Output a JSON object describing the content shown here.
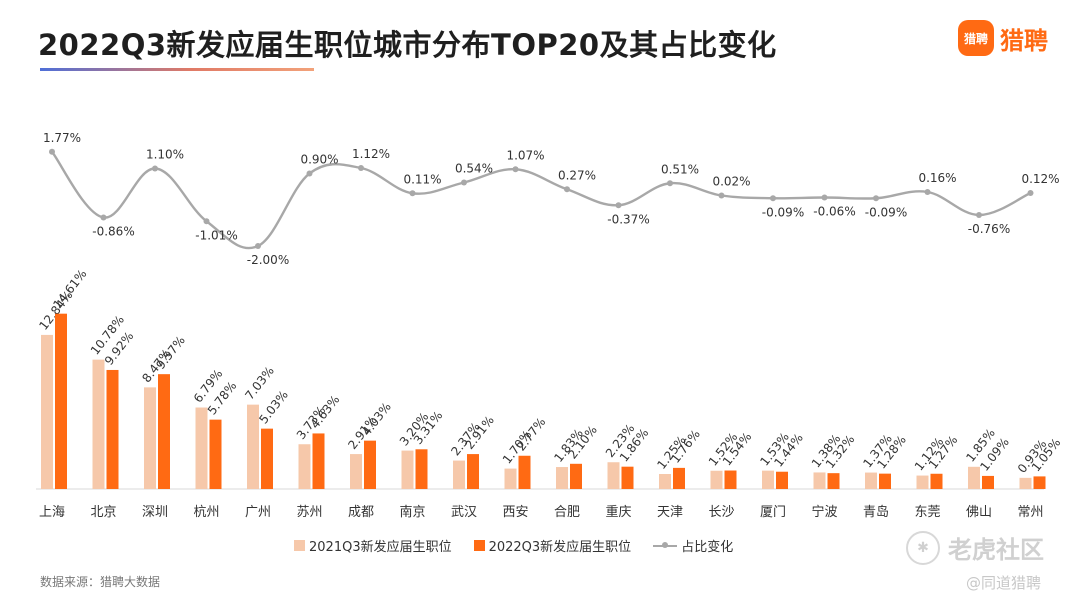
{
  "header": {
    "title": "2022Q3新发应届生职位城市分布TOP20及其占比变化"
  },
  "logo": {
    "mark": "猎聘",
    "text": "猎聘"
  },
  "chart_data": {
    "type": "bar",
    "title": "2022Q3新发应届生职位城市分布TOP20及其占比变化",
    "categories": [
      "上海",
      "北京",
      "深圳",
      "杭州",
      "广州",
      "苏州",
      "成都",
      "南京",
      "武汉",
      "西安",
      "合肥",
      "重庆",
      "天津",
      "长沙",
      "厦门",
      "宁波",
      "青岛",
      "东莞",
      "佛山",
      "常州"
    ],
    "series": [
      {
        "name": "2021Q3新发应届生职位",
        "color": "#f6c8aa",
        "values": [
          12.84,
          10.78,
          8.47,
          6.79,
          7.03,
          3.73,
          2.91,
          3.2,
          2.37,
          1.7,
          1.83,
          2.23,
          1.25,
          1.52,
          1.53,
          1.38,
          1.37,
          1.12,
          1.85,
          0.93
        ],
        "labels": [
          "12.84%",
          "10.78%",
          "8.47%",
          "6.79%",
          "7.03%",
          "3.73%",
          "2.91%",
          "3.20%",
          "2.37%",
          "1.70%",
          "1.83%",
          "2.23%",
          "1.25%",
          "1.52%",
          "1.53%",
          "1.38%",
          "1.37%",
          "1.12%",
          "1.85%",
          "0.93%"
        ]
      },
      {
        "name": "2022Q3新发应届生职位",
        "color": "#ff6a13",
        "values": [
          14.61,
          9.92,
          9.57,
          5.78,
          5.03,
          4.63,
          4.03,
          3.31,
          2.91,
          2.77,
          2.1,
          1.86,
          1.76,
          1.54,
          1.44,
          1.32,
          1.28,
          1.27,
          1.09,
          1.05
        ],
        "labels": [
          "14.61%",
          "9.92%",
          "9.57%",
          "5.78%",
          "5.03%",
          "4.63%",
          "4.03%",
          "3.31%",
          "2.91%",
          "2.77%",
          "2.10%",
          "1.86%",
          "1.76%",
          "1.54%",
          "1.44%",
          "1.32%",
          "1.28%",
          "1.27%",
          "1.09%",
          "1.05%"
        ]
      }
    ],
    "change_series": {
      "name": "占比变化",
      "color": "#a8a8a8",
      "values": [
        1.77,
        -0.86,
        1.1,
        -1.01,
        -2.0,
        0.9,
        1.12,
        0.11,
        0.54,
        1.07,
        0.27,
        -0.37,
        0.51,
        0.02,
        -0.09,
        -0.06,
        -0.09,
        0.16,
        -0.76,
        0.12
      ],
      "labels": [
        "1.77%",
        "-0.86%",
        "1.10%",
        "-1.01%",
        "-2.00%",
        "0.90%",
        "1.12%",
        "0.11%",
        "0.54%",
        "1.07%",
        "0.27%",
        "-0.37%",
        "0.51%",
        "0.02%",
        "-0.09%",
        "-0.06%",
        "-0.09%",
        "0.16%",
        "-0.76%",
        "0.12%"
      ]
    },
    "xlabel": "",
    "ylabel": "",
    "grid": false,
    "legend_position": "bottom"
  },
  "footer": {
    "source": "数据来源：猎聘大数据"
  },
  "watermark": {
    "primary": "老虎社区",
    "secondary": "@同道猎聘"
  }
}
